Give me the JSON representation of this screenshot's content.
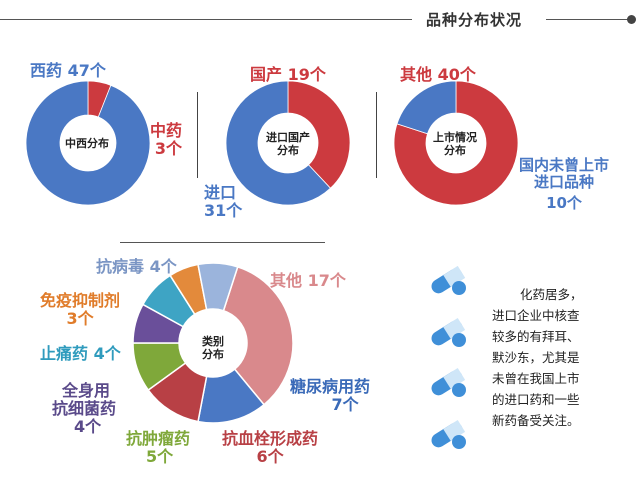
{
  "header": {
    "title": "品种分布状况"
  },
  "colors": {
    "blue": "#4a78c4",
    "red": "#cc3a3f",
    "pill_blue": "#3f8fd8",
    "pill_light": "#cfe6f8"
  },
  "chart_data": [
    {
      "type": "pie",
      "center_label": "中西分布",
      "categories": [
        "西药",
        "中药"
      ],
      "values": [
        47,
        3
      ],
      "labels": [
        {
          "name": "西药",
          "value": "47个"
        },
        {
          "name": "中药",
          "value": "3个"
        }
      ],
      "colors": [
        "#4a78c4",
        "#cc3a3f"
      ]
    },
    {
      "type": "pie",
      "center_label": [
        "进口国产",
        "分布"
      ],
      "categories": [
        "进口",
        "国产"
      ],
      "values": [
        31,
        19
      ],
      "labels": [
        {
          "name": "进口",
          "value": "31个"
        },
        {
          "name": "国产",
          "value": "19个"
        }
      ],
      "colors": [
        "#4a78c4",
        "#cc3a3f"
      ]
    },
    {
      "type": "pie",
      "center_label": [
        "上市情况",
        "分布"
      ],
      "categories": [
        "国内未曾上市进口品种",
        "其他"
      ],
      "values": [
        10,
        40
      ],
      "labels": [
        {
          "name": [
            "国内未曾上市",
            "进口品种"
          ],
          "value": "10个"
        },
        {
          "name": "其他",
          "value": "40个"
        }
      ],
      "colors": [
        "#4a78c4",
        "#cc3a3f"
      ]
    },
    {
      "type": "pie",
      "center_label": [
        "类别",
        "分布"
      ],
      "categories": [
        "其他",
        "糖尿病用药",
        "抗血栓形成药",
        "抗肿瘤药",
        "全身用抗细菌药",
        "止痛药",
        "免疫抑制剂",
        "抗病毒"
      ],
      "values": [
        17,
        7,
        6,
        5,
        4,
        4,
        3,
        4
      ],
      "labels": [
        {
          "name": "其他",
          "value": "17个"
        },
        {
          "name": "糖尿病用药",
          "value": "7个"
        },
        {
          "name": "抗血栓形成药",
          "value": "6个"
        },
        {
          "name": "抗肿瘤药",
          "value": "5个"
        },
        {
          "name": [
            "全身用",
            "抗细菌药"
          ],
          "value": "4个"
        },
        {
          "name": "止痛药",
          "value": "4个"
        },
        {
          "name": "免疫抑制剂",
          "value": "3个"
        },
        {
          "name": "抗病毒",
          "value": "4个"
        }
      ],
      "colors": [
        "#d9898c",
        "#4a78c4",
        "#b84045",
        "#7fa83a",
        "#6a4f9a",
        "#3ea4c4",
        "#e38a3b",
        "#9bb4dc"
      ]
    }
  ],
  "note": {
    "lines": [
      "化药居多，",
      "进口企业中核查",
      "较多的有拜耳、",
      "默沙东，尤其是",
      "未曾在我国上市",
      "的进口药和一些",
      "新药备受关注。"
    ]
  }
}
